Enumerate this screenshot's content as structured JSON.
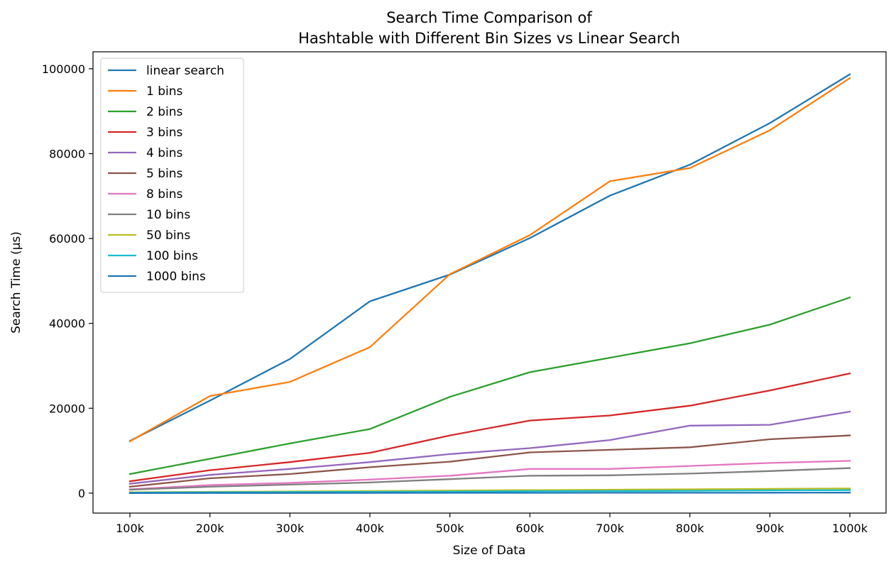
{
  "chart_data": {
    "type": "line",
    "title": [
      "Search Time Comparison of",
      "Hashtable with Different Bin Sizes vs Linear Search"
    ],
    "xlabel": "Size of Data",
    "ylabel": "Search Time (µs)",
    "categories": [
      "100k",
      "200k",
      "300k",
      "400k",
      "500k",
      "600k",
      "700k",
      "800k",
      "900k",
      "1000k"
    ],
    "ylim": [
      -4700,
      104000
    ],
    "yticks": [
      0,
      20000,
      40000,
      60000,
      80000,
      100000
    ],
    "grid": false,
    "legend_position": "upper-left",
    "series": [
      {
        "name": "linear search",
        "color": "#1f77b4",
        "values": [
          12300,
          21800,
          31600,
          45200,
          51500,
          60100,
          70100,
          77400,
          87200,
          98700
        ]
      },
      {
        "name": "1 bins",
        "color": "#ff7f0e",
        "values": [
          12200,
          22900,
          26200,
          34400,
          51600,
          60800,
          73500,
          76600,
          85500,
          97800
        ]
      },
      {
        "name": "2 bins",
        "color": "#2ca02c",
        "values": [
          4500,
          8100,
          11700,
          15100,
          22700,
          28500,
          31900,
          35300,
          39700,
          46100
        ]
      },
      {
        "name": "3 bins",
        "color": "#d62728",
        "values": [
          2800,
          5400,
          7300,
          9500,
          13600,
          17100,
          18300,
          20600,
          24200,
          28200
        ]
      },
      {
        "name": "4 bins",
        "color": "#9467bd",
        "values": [
          2200,
          4300,
          5700,
          7300,
          9200,
          10600,
          12500,
          15900,
          16100,
          19200
        ]
      },
      {
        "name": "5 bins",
        "color": "#8c564b",
        "values": [
          1500,
          3500,
          4500,
          6100,
          7400,
          9600,
          10200,
          10800,
          12700,
          13600
        ]
      },
      {
        "name": "8 bins",
        "color": "#e377c2",
        "values": [
          900,
          1900,
          2400,
          3200,
          4100,
          5700,
          5700,
          6400,
          7100,
          7600
        ]
      },
      {
        "name": "10 bins",
        "color": "#7f7f7f",
        "values": [
          800,
          1500,
          2000,
          2500,
          3300,
          4100,
          4200,
          4600,
          5200,
          5900
        ]
      },
      {
        "name": "50 bins",
        "color": "#bcbd22",
        "values": [
          200,
          300,
          400,
          500,
          600,
          700,
          800,
          900,
          1000,
          1100
        ]
      },
      {
        "name": "100 bins",
        "color": "#17becf",
        "values": [
          100,
          200,
          250,
          300,
          350,
          450,
          500,
          550,
          650,
          700
        ]
      },
      {
        "name": "1000 bins",
        "color": "#1f77b4",
        "values": [
          20,
          30,
          40,
          50,
          60,
          70,
          80,
          90,
          100,
          110
        ]
      }
    ]
  }
}
